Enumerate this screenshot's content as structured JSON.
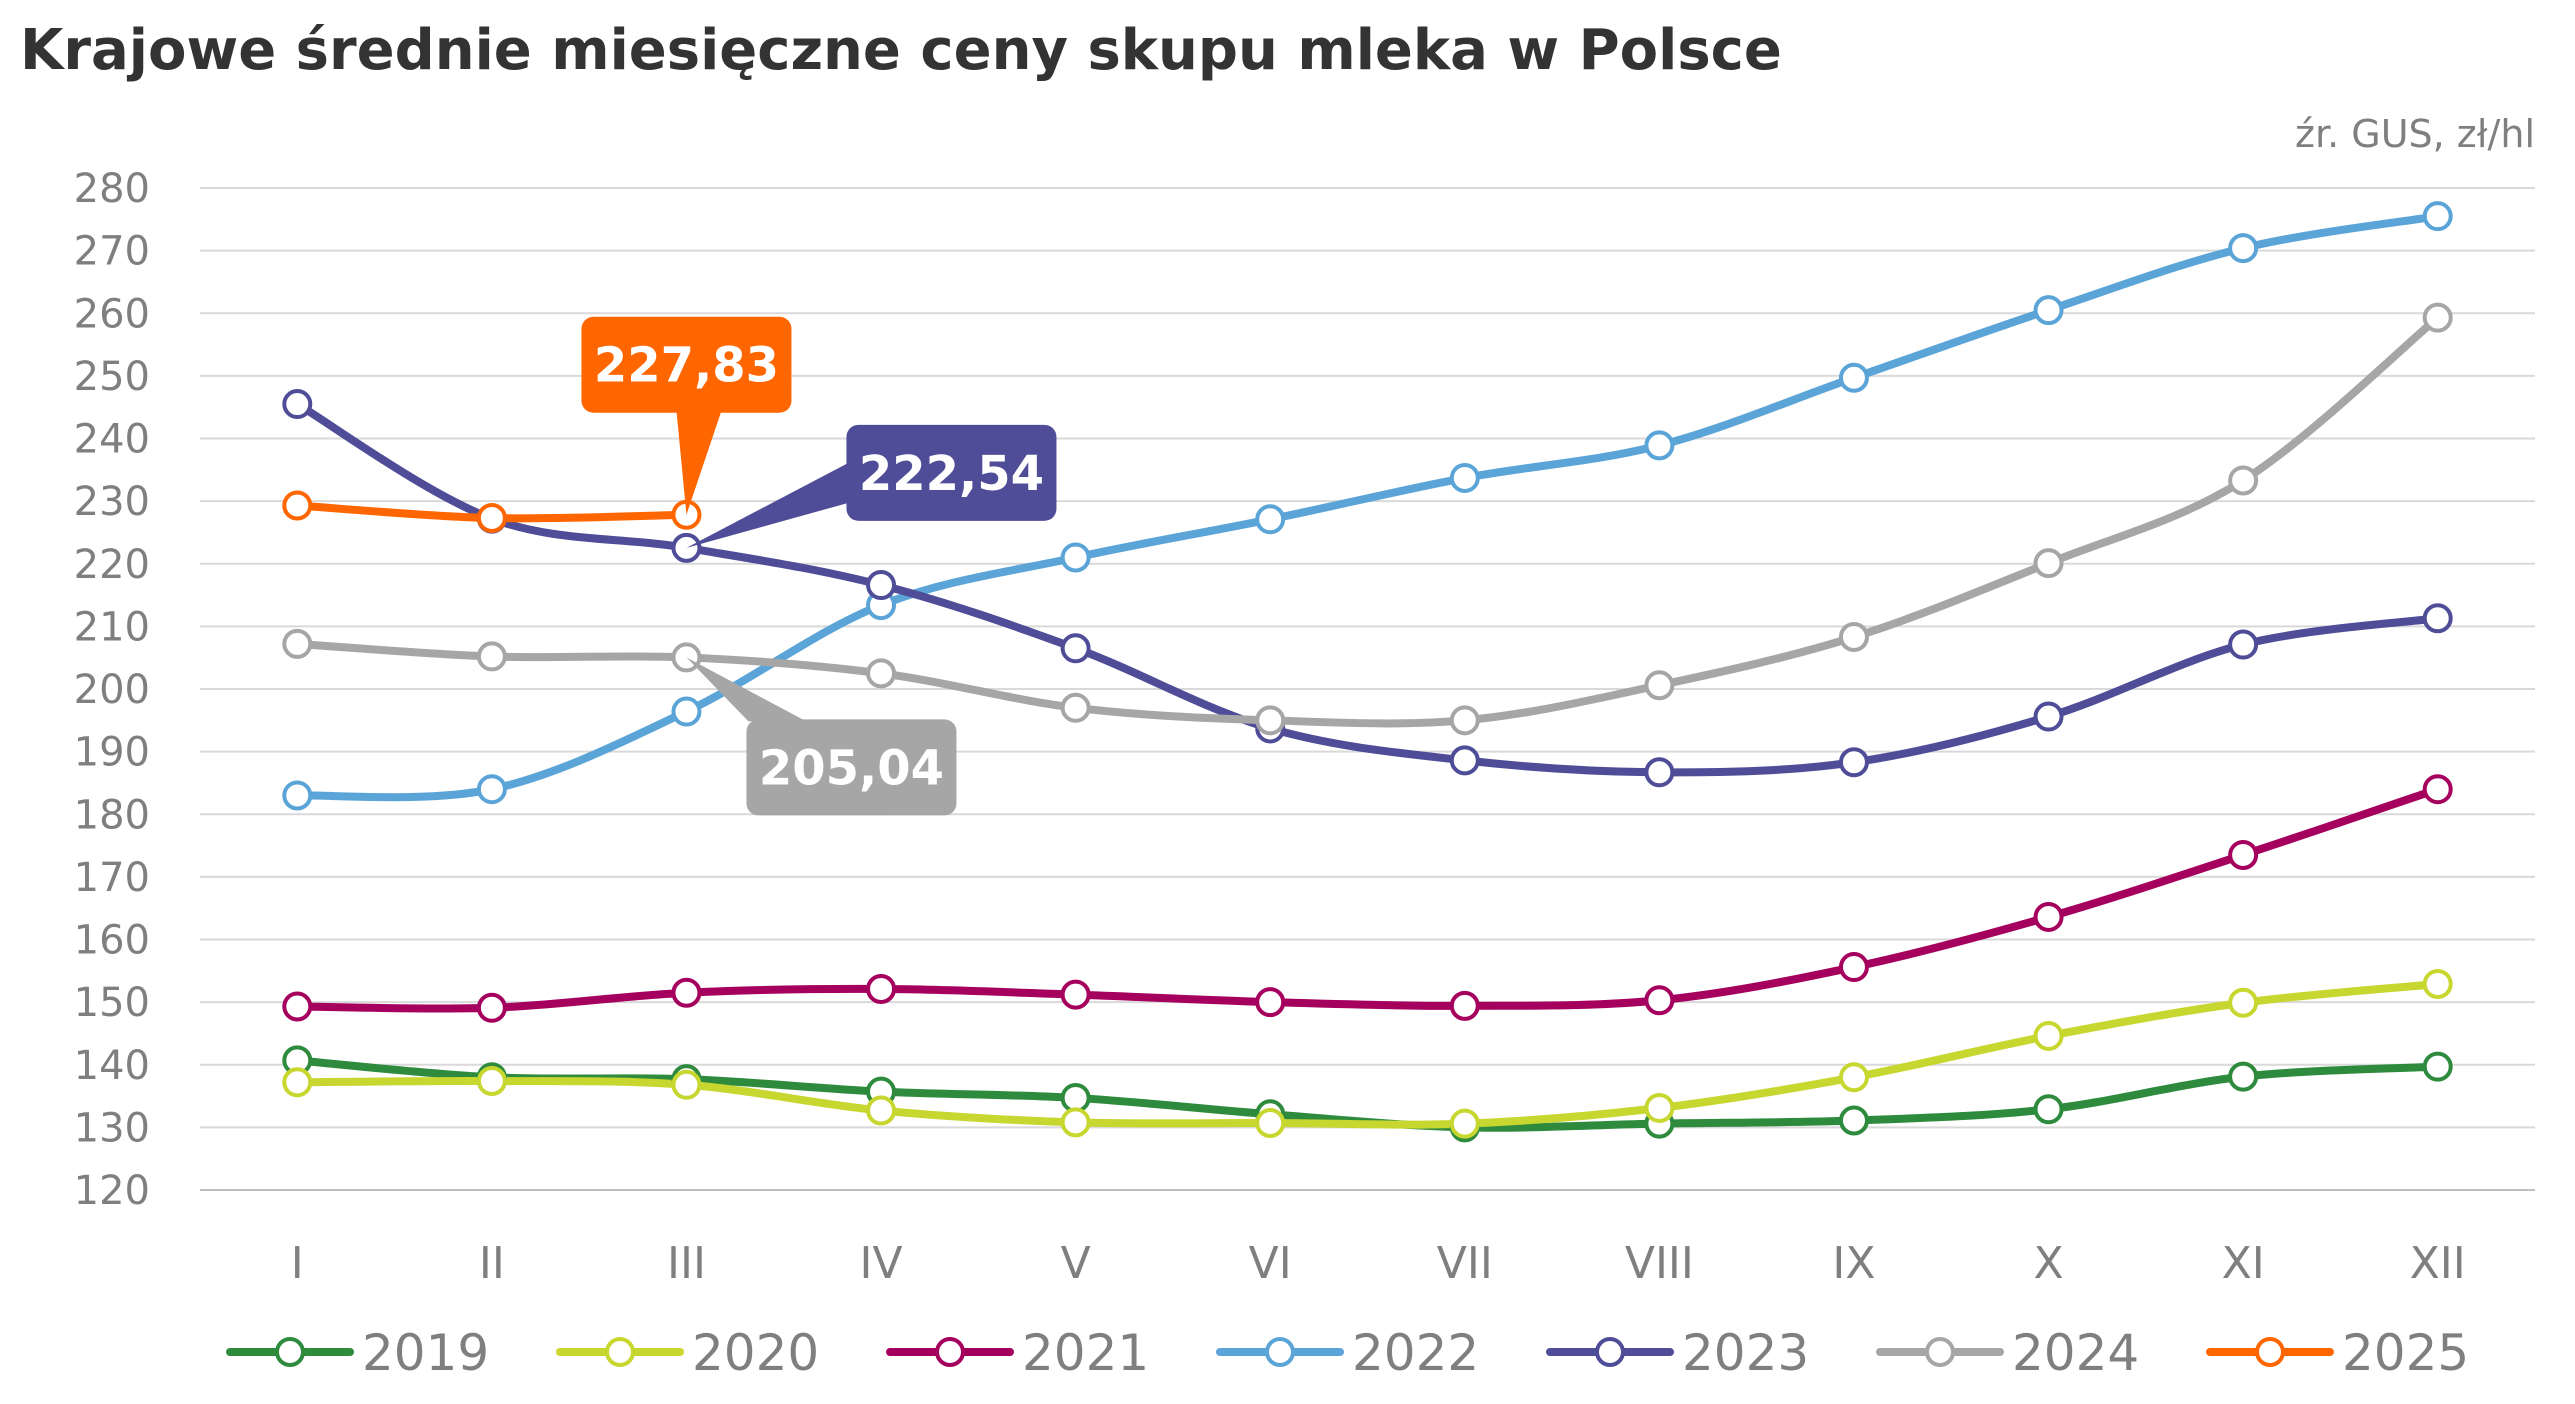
{
  "title": "Krajowe średnie miesięczne ceny skupu mleka w Polsce",
  "source": "źr. GUS, zł/hl",
  "chart_data": {
    "type": "line",
    "title": "Krajowe średnie miesięczne ceny skupu mleka w Polsce",
    "unit_note": "źr. GUS, zł/hl",
    "categories": [
      "I",
      "II",
      "III",
      "IV",
      "V",
      "VI",
      "VII",
      "VIII",
      "IX",
      "X",
      "XI",
      "XII"
    ],
    "ylim": [
      120,
      280
    ],
    "yticks": [
      120,
      130,
      140,
      150,
      160,
      170,
      180,
      190,
      200,
      210,
      220,
      230,
      240,
      250,
      260,
      270,
      280
    ],
    "grid": true,
    "legend_position": "bottom",
    "series": [
      {
        "name": "2019",
        "color": "#2e8b3e",
        "values": [
          140.7,
          138.0,
          137.7,
          135.7,
          134.7,
          132.1,
          130.0,
          130.6,
          131.1,
          132.9,
          138.1,
          139.7
        ]
      },
      {
        "name": "2020",
        "color": "#c8d630",
        "values": [
          137.2,
          137.4,
          136.8,
          132.7,
          130.8,
          130.7,
          130.6,
          133.1,
          138.0,
          144.6,
          149.9,
          152.9
        ]
      },
      {
        "name": "2021",
        "color": "#a6005e",
        "values": [
          149.3,
          149.1,
          151.5,
          152.1,
          151.2,
          150.0,
          149.4,
          150.3,
          155.6,
          163.6,
          173.5,
          184.0
        ]
      },
      {
        "name": "2022",
        "color": "#5ba4d8",
        "values": [
          183.0,
          184.0,
          196.4,
          213.4,
          221.0,
          227.1,
          233.7,
          238.9,
          249.7,
          260.5,
          270.4,
          275.5
        ]
      },
      {
        "name": "2023",
        "color": "#4f4d98",
        "values": [
          245.5,
          227.2,
          222.54,
          216.6,
          206.5,
          193.7,
          188.6,
          186.7,
          188.3,
          195.6,
          207.1,
          211.3
        ]
      },
      {
        "name": "2024",
        "color": "#a6a6a6",
        "values": [
          207.2,
          205.2,
          205.04,
          202.5,
          197.0,
          195.0,
          195.0,
          200.6,
          208.3,
          220.1,
          233.3,
          259.3
        ]
      },
      {
        "name": "2025",
        "color": "#ff6600",
        "values": [
          229.3,
          227.3,
          227.83,
          null,
          null,
          null,
          null,
          null,
          null,
          null,
          null,
          null
        ]
      }
    ],
    "annotations": [
      {
        "text": "227,83",
        "series": "2025",
        "category": "III",
        "color": "#ff6600"
      },
      {
        "text": "222,54",
        "series": "2023",
        "category": "III",
        "color": "#4f4d98"
      },
      {
        "text": "205,04",
        "series": "2024",
        "category": "III",
        "color": "#a6a6a6"
      }
    ]
  }
}
